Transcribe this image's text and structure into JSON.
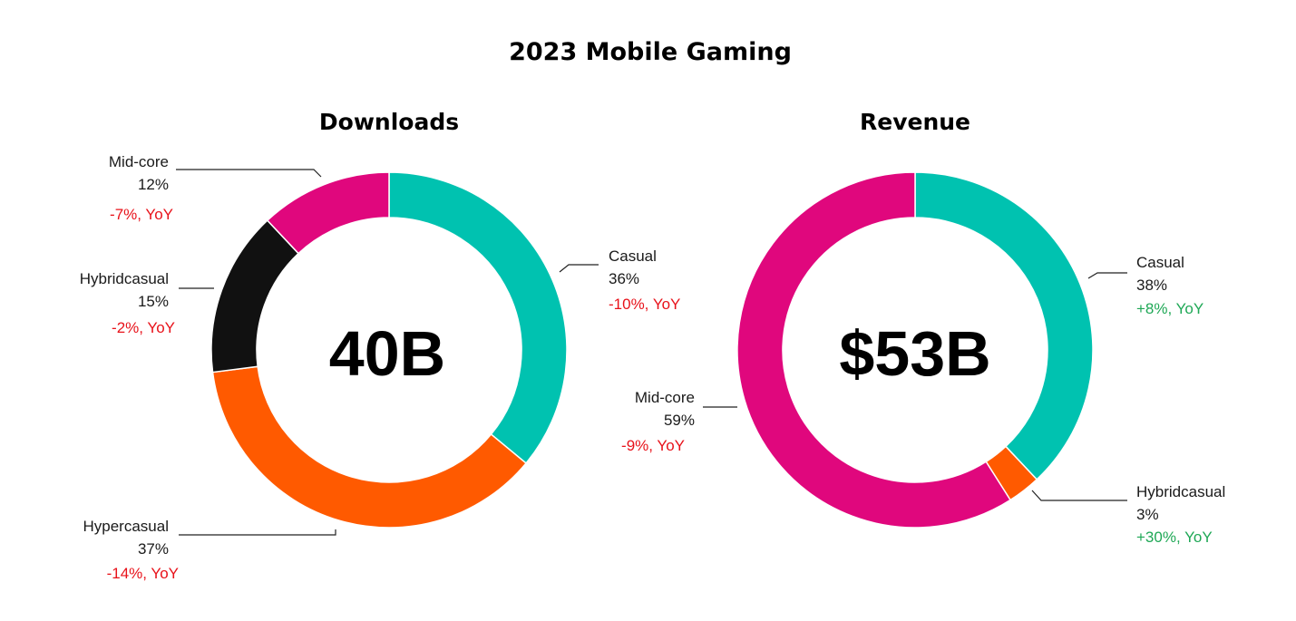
{
  "colors": {
    "casual": "#00c2b0",
    "midcore": "#e0077d",
    "hybridcasual": "#111111",
    "hypercasual": "#ff5a00",
    "negative": "#e8121a",
    "positive": "#1fa856"
  },
  "chart_data": {
    "title": "2023 Mobile Gaming",
    "charts": [
      {
        "type": "pie",
        "title": "Downloads",
        "center_label": "40B",
        "slices": [
          {
            "name": "Casual",
            "percent_label": "36%",
            "value": 36,
            "yoy_label": "-10%, YoY",
            "yoy": -10,
            "color": "#00c2b0"
          },
          {
            "name": "Hypercasual",
            "percent_label": "37%",
            "value": 37,
            "yoy_label": "-14%, YoY",
            "yoy": -14,
            "color": "#ff5a00"
          },
          {
            "name": "Hybridcasual",
            "percent_label": "15%",
            "value": 15,
            "yoy_label": "-2%, YoY",
            "yoy": -2,
            "color": "#111111"
          },
          {
            "name": "Mid-core",
            "percent_label": "12%",
            "value": 12,
            "yoy_label": "-7%, YoY",
            "yoy": -7,
            "color": "#e0077d"
          }
        ]
      },
      {
        "type": "pie",
        "title": "Revenue",
        "center_label": "$53B",
        "slices": [
          {
            "name": "Casual",
            "percent_label": "38%",
            "value": 38,
            "yoy_label": "+8%, YoY",
            "yoy": 8,
            "color": "#00c2b0"
          },
          {
            "name": "Hybridcasual",
            "percent_label": "3%",
            "value": 3,
            "yoy_label": "+30%, YoY",
            "yoy": 30,
            "color": "#ff5a00"
          },
          {
            "name": "Mid-core",
            "percent_label": "59%",
            "value": 59,
            "yoy_label": "-9%, YoY",
            "yoy": -9,
            "color": "#e0077d"
          }
        ]
      }
    ]
  }
}
